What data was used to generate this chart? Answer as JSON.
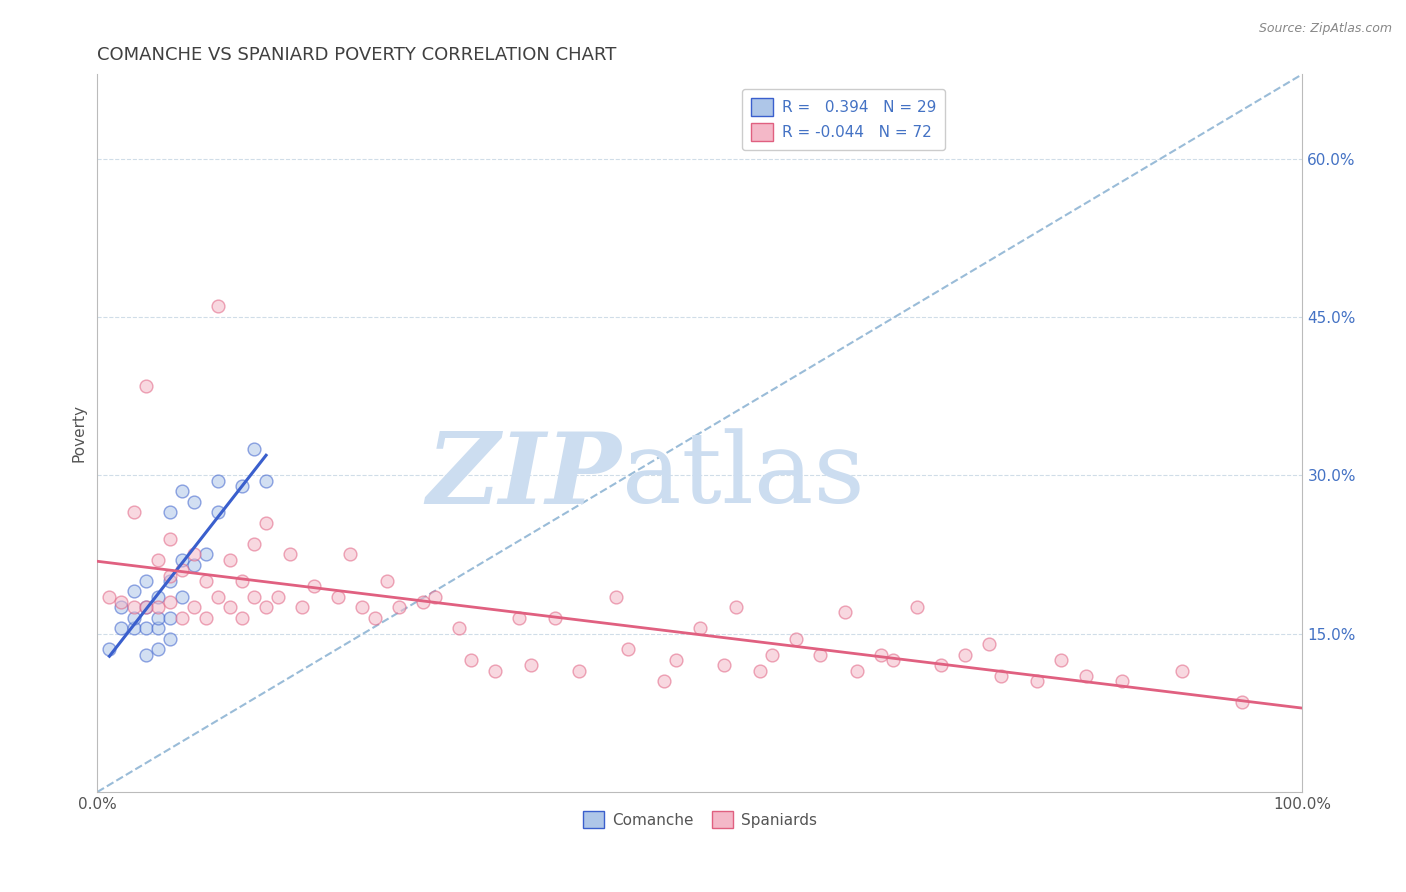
{
  "title": "COMANCHE VS SPANIARD POVERTY CORRELATION CHART",
  "source_text": "Source: ZipAtlas.com",
  "ylabel": "Poverty",
  "xlim": [
    0,
    1.0
  ],
  "ylim": [
    0.0,
    0.68
  ],
  "y_ticks_right": [
    0.15,
    0.3,
    0.45,
    0.6
  ],
  "y_tick_labels_right": [
    "15.0%",
    "30.0%",
    "45.0%",
    "60.0%"
  ],
  "legend_r1": "R =   0.394   N = 29",
  "legend_r2": "R = -0.044   N = 72",
  "comanche_color": "#aec6e8",
  "spaniard_color": "#f4b8c8",
  "blue_line_color": "#3a5fcd",
  "pink_line_color": "#e06080",
  "dashed_line_color": "#9abcd8",
  "watermark_text": "ZIPatlas",
  "watermark_color": "#ccddf0",
  "title_color": "#404040",
  "title_fontsize": 13,
  "comanche_x": [
    0.01,
    0.02,
    0.02,
    0.03,
    0.03,
    0.03,
    0.04,
    0.04,
    0.04,
    0.04,
    0.05,
    0.05,
    0.05,
    0.05,
    0.06,
    0.06,
    0.06,
    0.06,
    0.07,
    0.07,
    0.07,
    0.08,
    0.08,
    0.09,
    0.1,
    0.1,
    0.12,
    0.13,
    0.14
  ],
  "comanche_y": [
    0.135,
    0.155,
    0.175,
    0.155,
    0.165,
    0.19,
    0.13,
    0.155,
    0.175,
    0.2,
    0.135,
    0.155,
    0.165,
    0.185,
    0.145,
    0.165,
    0.2,
    0.265,
    0.185,
    0.22,
    0.285,
    0.215,
    0.275,
    0.225,
    0.265,
    0.295,
    0.29,
    0.325,
    0.295
  ],
  "spaniard_x": [
    0.01,
    0.02,
    0.03,
    0.03,
    0.04,
    0.04,
    0.05,
    0.05,
    0.06,
    0.06,
    0.06,
    0.07,
    0.07,
    0.08,
    0.08,
    0.09,
    0.09,
    0.1,
    0.1,
    0.11,
    0.11,
    0.12,
    0.12,
    0.13,
    0.13,
    0.14,
    0.14,
    0.15,
    0.16,
    0.17,
    0.18,
    0.2,
    0.21,
    0.22,
    0.23,
    0.24,
    0.25,
    0.27,
    0.28,
    0.3,
    0.31,
    0.33,
    0.35,
    0.36,
    0.38,
    0.4,
    0.43,
    0.44,
    0.47,
    0.48,
    0.5,
    0.52,
    0.53,
    0.55,
    0.56,
    0.58,
    0.6,
    0.62,
    0.63,
    0.65,
    0.66,
    0.68,
    0.7,
    0.72,
    0.74,
    0.75,
    0.78,
    0.8,
    0.82,
    0.85,
    0.9,
    0.95
  ],
  "spaniard_y": [
    0.185,
    0.18,
    0.175,
    0.265,
    0.175,
    0.385,
    0.175,
    0.22,
    0.18,
    0.205,
    0.24,
    0.165,
    0.21,
    0.175,
    0.225,
    0.165,
    0.2,
    0.185,
    0.46,
    0.175,
    0.22,
    0.165,
    0.2,
    0.185,
    0.235,
    0.175,
    0.255,
    0.185,
    0.225,
    0.175,
    0.195,
    0.185,
    0.225,
    0.175,
    0.165,
    0.2,
    0.175,
    0.18,
    0.185,
    0.155,
    0.125,
    0.115,
    0.165,
    0.12,
    0.165,
    0.115,
    0.185,
    0.135,
    0.105,
    0.125,
    0.155,
    0.12,
    0.175,
    0.115,
    0.13,
    0.145,
    0.13,
    0.17,
    0.115,
    0.13,
    0.125,
    0.175,
    0.12,
    0.13,
    0.14,
    0.11,
    0.105,
    0.125,
    0.11,
    0.105,
    0.115,
    0.085
  ],
  "marker_size": 85,
  "marker_alpha": 0.55,
  "marker_linewidth": 1.0
}
